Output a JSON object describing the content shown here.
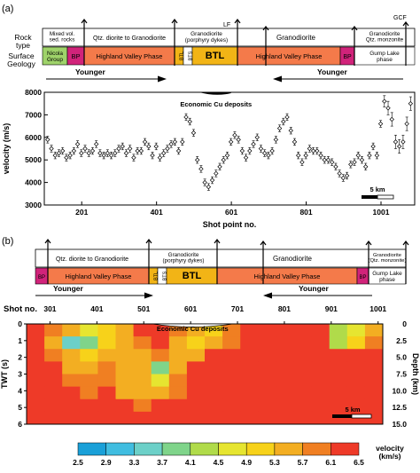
{
  "panel_a_label": "(a)",
  "panel_b_label": "(b)",
  "row_labels": {
    "rock_type": "Rock\ntype",
    "surface_geology": "Surface\nGeology"
  },
  "fault_labels": {
    "lf": "LF",
    "gcf": "GCF"
  },
  "panel_a_rock_types": [
    "Mixed vol.\nsed. rocks",
    "Qtz. diorite to Granodiorite",
    "Granodiorite\n(porphyry dykes)",
    "Granodiorite",
    "Granodiorite\nQtz. monzonite"
  ],
  "panel_a_units": [
    "Nicola\nGroup",
    "BP",
    "Highland Valley Phase",
    "BTL",
    "BTS",
    "BTL",
    "Highland Valley Phase",
    "BP",
    "Gump Lake\nphase"
  ],
  "panel_b_rock_types": [
    "Qtz. diorite to Granodiorite",
    "Granodiorite\n(porphyry dykes)",
    "Granodiorite",
    "Granodiorite\n(Qtz. monzonite)"
  ],
  "panel_b_units": [
    "BP",
    "Highland Valley Phase",
    "BTL",
    "BTS",
    "BTL",
    "Highland Valley Phase",
    "BP",
    "Gump Lake\nphase"
  ],
  "younger_label": "Younger",
  "colors": {
    "nicola": "#9fd36a",
    "bp": "#d1237a",
    "hvp": "#f47a4a",
    "btl": "#f2b416",
    "bts": "#ffffff",
    "gump": "#ffffff"
  },
  "chart_data": [
    {
      "type": "scatter",
      "annotation": "Economic Cu deposits",
      "xlabel": "Shot point no.",
      "ylabel": "velocity (m/s)",
      "xticks": [
        201,
        401,
        601,
        801,
        1001
      ],
      "xlim": [
        101,
        1091
      ],
      "yticks": [
        3000,
        4000,
        5000,
        6000,
        7000,
        8000
      ],
      "ylim": [
        3000,
        8000
      ],
      "scale_bar": "5 km",
      "series": [
        {
          "x": [
            110,
            120,
            130,
            140,
            150,
            160,
            170,
            180,
            190,
            200,
            210,
            220,
            230,
            240,
            250,
            260,
            270,
            280,
            290,
            300,
            310,
            320,
            330,
            340,
            350,
            360,
            370,
            380,
            390,
            400,
            410,
            420,
            430,
            440,
            450,
            460,
            470,
            480,
            490,
            500,
            510,
            520,
            530,
            540,
            550,
            560,
            570,
            580,
            590,
            600,
            610,
            620,
            630,
            640,
            650,
            660,
            670,
            680,
            690,
            700,
            710,
            720,
            730,
            740,
            750,
            760,
            770,
            780,
            790,
            800,
            810,
            820,
            830,
            840,
            850,
            860,
            870,
            880,
            890,
            900,
            910,
            920,
            930,
            940,
            950,
            960,
            970,
            980,
            990,
            1000,
            1010,
            1020,
            1030,
            1040,
            1050,
            1060,
            1070,
            1080
          ],
          "y": [
            5900,
            5500,
            5200,
            5300,
            5400,
            5100,
            5200,
            5400,
            5700,
            5300,
            5500,
            5300,
            5400,
            5700,
            5300,
            5200,
            5300,
            5200,
            5300,
            5500,
            5600,
            5300,
            5500,
            5100,
            5400,
            5400,
            5800,
            5600,
            5200,
            5600,
            5100,
            5300,
            5500,
            5700,
            5800,
            5400,
            5800,
            6900,
            6700,
            6200,
            5000,
            4600,
            4000,
            3800,
            4100,
            4400,
            4700,
            5000,
            5200,
            5800,
            6100,
            5900,
            5400,
            5100,
            5400,
            5700,
            6000,
            5500,
            5300,
            5200,
            5400,
            5900,
            6400,
            6700,
            6900,
            6300,
            5800,
            5200,
            4900,
            5200,
            5500,
            5400,
            5400,
            5200,
            5000,
            5000,
            4900,
            4700,
            4400,
            4200,
            4300,
            4800,
            4900,
            5200,
            5000,
            4700,
            5200,
            5600,
            5200,
            6600,
            7600,
            7300,
            6800,
            5800,
            5600,
            5800,
            6600,
            7500
          ],
          "err": [
            150,
            150,
            150,
            150,
            150,
            150,
            150,
            150,
            150,
            150,
            150,
            150,
            150,
            150,
            150,
            150,
            150,
            150,
            150,
            150,
            150,
            150,
            150,
            150,
            150,
            150,
            150,
            150,
            150,
            150,
            150,
            150,
            150,
            150,
            150,
            150,
            150,
            150,
            150,
            150,
            150,
            150,
            150,
            150,
            150,
            150,
            150,
            150,
            150,
            150,
            150,
            150,
            150,
            150,
            150,
            150,
            150,
            150,
            150,
            150,
            150,
            150,
            150,
            150,
            150,
            150,
            150,
            150,
            150,
            150,
            150,
            150,
            150,
            150,
            150,
            150,
            150,
            150,
            150,
            150,
            150,
            150,
            150,
            150,
            150,
            150,
            150,
            150,
            150,
            150,
            250,
            300,
            300,
            300,
            300,
            300,
            300,
            300
          ]
        }
      ]
    },
    {
      "type": "heatmap",
      "annotation": "Economic Cu deposits",
      "xlabel": "Shot no.",
      "ylabel": "TWT (s)",
      "ylabel_right": "Depth (km)",
      "xticks": [
        301,
        401,
        501,
        601,
        701,
        801,
        901,
        1001
      ],
      "xlim": [
        251,
        1011
      ],
      "yticks": [
        0,
        1,
        2,
        3,
        4,
        5,
        6
      ],
      "ylim": [
        0,
        6
      ],
      "depth_ticks": [
        "0",
        "2.5",
        "5.0",
        "7.5",
        "10.0",
        "12.5",
        "15.0"
      ],
      "scale_bar": "5 km",
      "colorbar": {
        "label": "velocity\n(km/s)",
        "ticks": [
          "2.5",
          "2.9",
          "3.3",
          "3.7",
          "4.1",
          "4.5",
          "4.9",
          "5.3",
          "5.7",
          "6.1",
          "6.5"
        ],
        "colors": [
          "#1aa0d8",
          "#40bde0",
          "#6cd0c8",
          "#7fd48a",
          "#b0db4a",
          "#e6e530",
          "#f7d21a",
          "#f3ae22",
          "#f07f22",
          "#ee3a28"
        ]
      },
      "cells": [
        [
          6.2,
          6.0,
          5.3,
          4.5,
          5.0,
          5.5,
          6.1,
          6.1,
          5.9,
          5.4,
          5.2,
          5.8,
          6.2,
          6.2,
          6.3,
          6.4,
          6.3,
          4.4,
          4.8,
          5.6
        ],
        [
          6.1,
          5.3,
          3.4,
          4.0,
          5.2,
          5.5,
          6.0,
          6.1,
          5.6,
          5.2,
          5.3,
          5.7,
          6.2,
          6.3,
          6.4,
          6.4,
          6.3,
          4.2,
          5.0,
          5.9
        ],
        [
          6.2,
          5.9,
          5.4,
          5.2,
          5.5,
          5.3,
          5.5,
          5.7,
          5.3,
          5.6,
          6.1,
          6.3,
          6.4,
          6.5,
          6.5,
          6.4,
          6.3,
          6.2,
          6.2,
          6.3
        ],
        [
          6.3,
          6.2,
          5.6,
          5.6,
          5.8,
          5.5,
          5.4,
          4.1,
          5.6,
          6.2,
          6.4,
          6.5,
          6.5,
          6.5,
          6.5,
          6.5,
          6.5,
          6.5,
          6.5,
          6.5
        ],
        [
          6.4,
          6.3,
          5.9,
          5.7,
          5.9,
          5.6,
          5.5,
          4.5,
          5.7,
          6.3,
          6.5,
          6.5,
          6.5,
          6.5,
          6.5,
          6.5,
          6.5,
          6.5,
          6.5,
          6.5
        ],
        [
          6.5,
          6.4,
          6.2,
          6.0,
          6.1,
          5.6,
          5.4,
          5.4,
          5.8,
          6.4,
          6.5,
          6.5,
          6.5,
          6.5,
          6.5,
          6.5,
          6.5,
          6.5,
          6.5,
          6.5
        ],
        [
          6.5,
          6.5,
          6.4,
          6.3,
          6.3,
          6.1,
          6.0,
          6.2,
          6.3,
          6.5,
          6.5,
          6.5,
          6.5,
          6.5,
          6.5,
          6.5,
          6.5,
          6.5,
          6.5,
          6.5
        ],
        [
          6.5,
          6.5,
          6.5,
          6.5,
          6.5,
          6.5,
          6.5,
          6.5,
          6.5,
          6.5,
          6.5,
          6.5,
          6.5,
          6.5,
          6.5,
          6.5,
          6.5,
          6.5,
          6.5,
          6.5
        ]
      ]
    }
  ]
}
